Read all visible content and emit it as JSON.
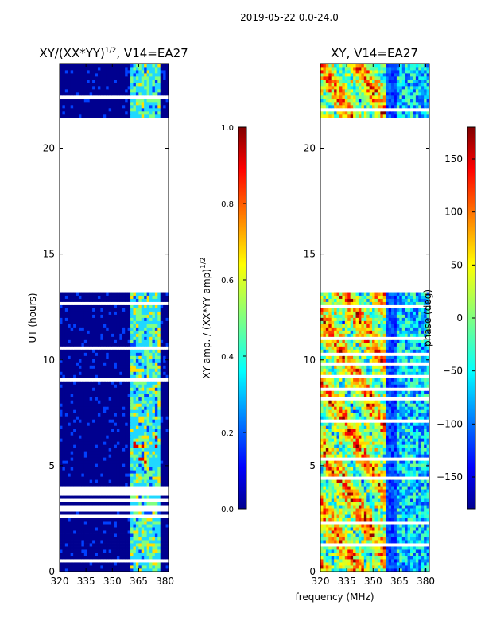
{
  "figure": {
    "suptitle": "2019-05-22 0.0-24.0"
  },
  "colors": {
    "deep_blue": "#00008f",
    "mid_blue": "#0040ff",
    "cyan": "#20d8ff",
    "green": "#80ff80",
    "yellow": "#ffe000",
    "orange": "#ff8000",
    "red": "#e00000",
    "dark_red": "#800000"
  },
  "chart_data": [
    {
      "type": "heatmap",
      "title": "XY/(XX*YY)^1/2, V14=EA27",
      "title_main": "XY/(XX*YY)",
      "title_sup": "1/2",
      "title_rest": ", V14=EA27",
      "xlabel": "",
      "ylabel": "UT (hours)",
      "xlim": [
        320,
        382
      ],
      "ylim": [
        0,
        24
      ],
      "xticks": [
        320,
        335,
        350,
        365,
        380
      ],
      "yticks": [
        0,
        5,
        10,
        15,
        20
      ],
      "data_blocks": [
        [
          0,
          13.2
        ],
        [
          21.4,
          24
        ]
      ],
      "active_freq_range": [
        359,
        377
      ],
      "colorbar": {
        "label": "XY amp. / (XX*YY amp)^1/2",
        "label_main": "XY amp. / (XX*YY amp)",
        "label_sup": "1/2",
        "range": [
          0.0,
          1.0
        ],
        "ticks": [
          "0.0",
          "0.2",
          "0.4",
          "0.6",
          "0.8",
          "1.0"
        ]
      }
    },
    {
      "type": "heatmap",
      "title": "XY, V14=EA27",
      "xlabel": "frequency (MHz)",
      "ylabel": "",
      "xlim": [
        320,
        382
      ],
      "ylim": [
        0,
        24
      ],
      "xticks": [
        320,
        335,
        350,
        365,
        380
      ],
      "yticks": [
        0,
        5,
        10,
        15,
        20
      ],
      "data_blocks": [
        [
          0,
          13.2
        ],
        [
          21.4,
          24
        ]
      ],
      "colorbar": {
        "label": "phase (deg)",
        "range": [
          -180,
          180
        ],
        "ticks": [
          "−150",
          "−100",
          "−50",
          "0",
          "50",
          "100",
          "150"
        ]
      }
    }
  ]
}
